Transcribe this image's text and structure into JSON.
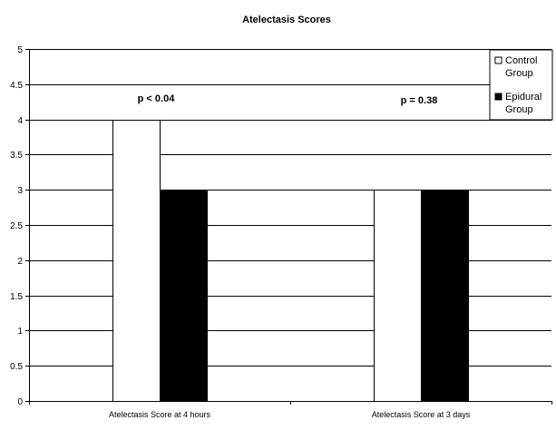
{
  "chart_data": {
    "type": "bar",
    "title": "Atelectasis Scores",
    "xlabel": "",
    "ylabel": "",
    "categories": [
      "Atelectasis Score at 4 hours",
      "Atelectasis Score at 3 days"
    ],
    "series": [
      {
        "name": "Control Group",
        "values": [
          4,
          3
        ],
        "color": "#ffffff"
      },
      {
        "name": "Epidural Group",
        "values": [
          3,
          3
        ],
        "color": "#000000"
      }
    ],
    "ylim": [
      0,
      5
    ],
    "yticks": [
      "0",
      "0.5",
      "1",
      "1.5",
      "2",
      "2.5",
      "3",
      "3.5",
      "4",
      "4.5",
      "5"
    ],
    "annotations": [
      "p < 0.04",
      "p = 0.38"
    ],
    "grid": true,
    "legend_position": "top-right"
  }
}
